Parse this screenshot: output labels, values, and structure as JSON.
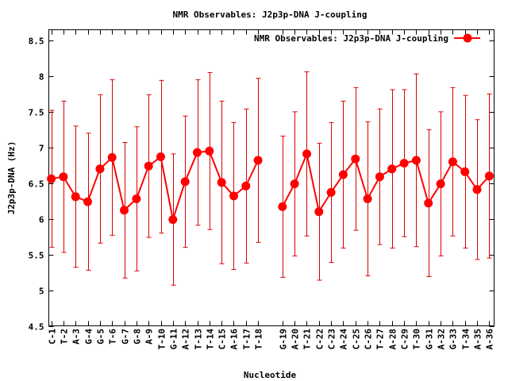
{
  "chart_data": {
    "type": "line",
    "title": "NMR Observables: J2p3p-DNA J-coupling",
    "xlabel": "Nucleotide",
    "ylabel": "J2p3p-DNA (Hz)",
    "ylim": [
      4.5,
      8.65
    ],
    "yticks": [
      "4.5",
      "5",
      "5.5",
      "6",
      "6.5",
      "7",
      "7.5",
      "8",
      "8.5"
    ],
    "legend": {
      "position": "top-right"
    },
    "colors": {
      "series": "#ff0000",
      "marker": "#ff0000",
      "errorbar": "#dd0000"
    },
    "categories": [
      "C-1",
      "T-2",
      "A-3",
      "G-4",
      "G-5",
      "T-6",
      "G-7",
      "G-8",
      "A-9",
      "T-10",
      "G-11",
      "A-12",
      "T-13",
      "T-14",
      "C-15",
      "A-16",
      "T-17",
      "T-18",
      "G-19",
      "A-20",
      "T-21",
      "C-22",
      "C-23",
      "A-24",
      "C-25",
      "C-26",
      "T-27",
      "A-28",
      "C-29",
      "T-30",
      "G-31",
      "A-32",
      "G-33",
      "T-34",
      "A-35",
      "A-36"
    ],
    "series": [
      {
        "name": "NMR Observables: J2p3p-DNA J-coupling",
        "segments": [
          {
            "x": [
              1,
              2,
              3,
              4,
              5,
              6,
              7,
              8,
              9,
              10,
              11,
              12,
              13,
              14,
              15,
              16,
              17,
              18
            ],
            "y": [
              6.56,
              6.59,
              6.31,
              6.24,
              6.7,
              6.86,
              6.12,
              6.28,
              6.74,
              6.87,
              5.99,
              6.52,
              6.93,
              6.95,
              6.51,
              6.32,
              6.46,
              6.82
            ],
            "err": [
              0.96,
              1.06,
              0.99,
              0.96,
              1.04,
              1.09,
              0.95,
              1.01,
              1.0,
              1.07,
              0.92,
              0.92,
              1.02,
              1.1,
              1.14,
              1.03,
              1.08,
              1.15
            ]
          },
          {
            "x": [
              20,
              21,
              22,
              23,
              24,
              25,
              26,
              27,
              28,
              29,
              30,
              31,
              32,
              33,
              34,
              35,
              36,
              37
            ],
            "y": [
              6.17,
              6.49,
              6.91,
              6.1,
              6.37,
              6.62,
              6.84,
              6.28,
              6.59,
              6.7,
              6.78,
              6.82,
              6.22,
              6.49,
              6.8,
              6.66,
              6.41,
              6.6
            ],
            "err": [
              0.99,
              1.01,
              1.15,
              0.96,
              0.98,
              1.03,
              1.0,
              1.08,
              0.95,
              1.11,
              1.03,
              1.21,
              1.03,
              1.01,
              1.04,
              1.07,
              0.98,
              1.15
            ]
          }
        ]
      }
    ]
  }
}
